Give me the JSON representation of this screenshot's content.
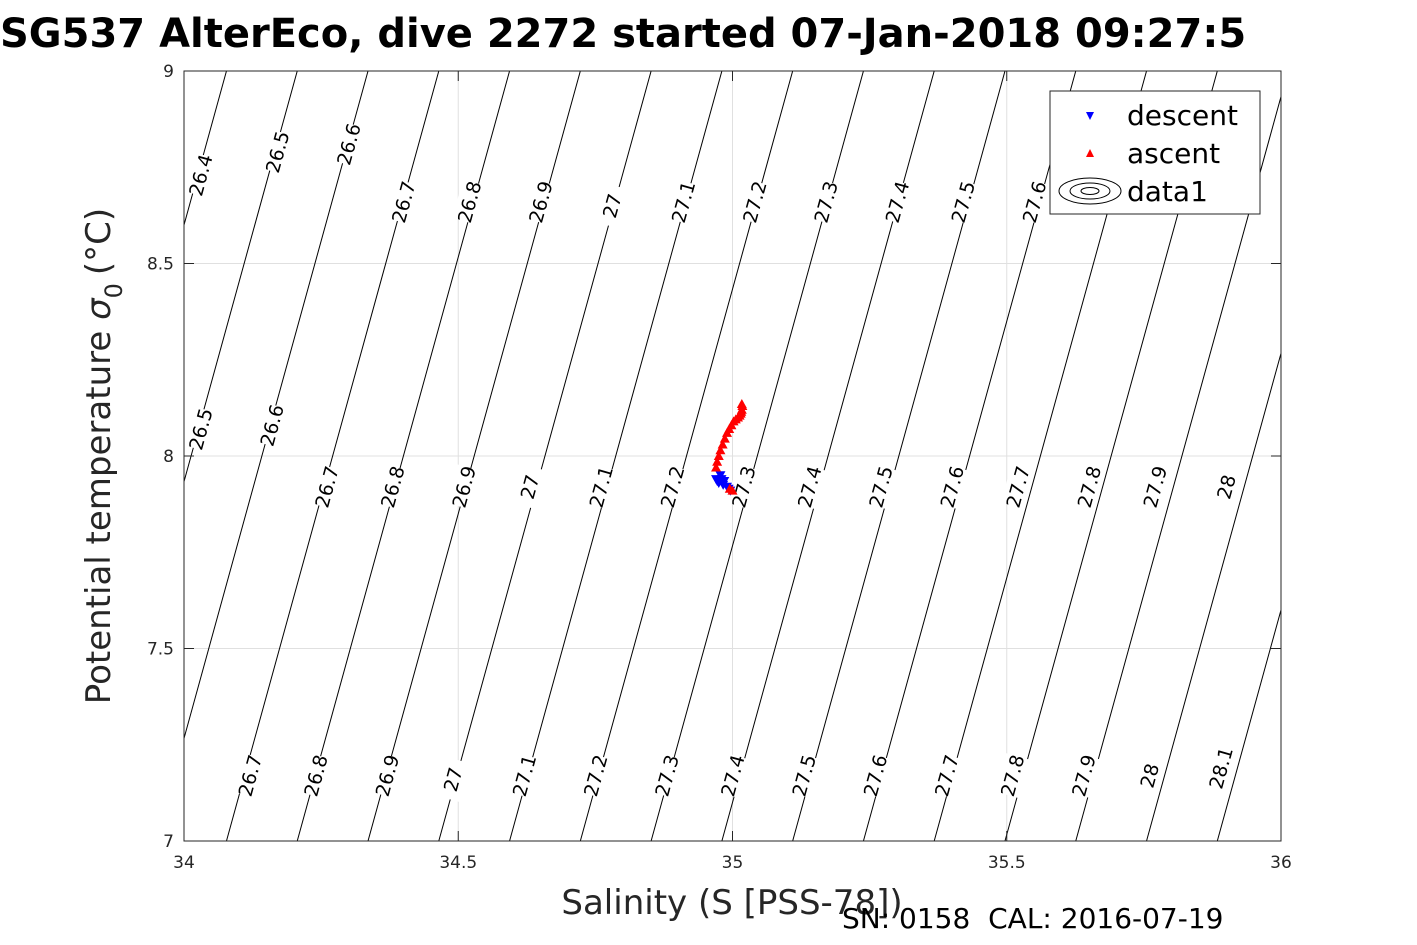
{
  "chart_data": {
    "type": "scatter",
    "title": "SG537 AlterEco, dive 2272 started 07-Jan-2018 09:27:5",
    "xlabel": "Salinity (S [PSS-78])",
    "ylabel": "Potential temperature",
    "ylabel_symbol": "σ",
    "ylabel_subscript": "0",
    "ylabel_unit": "(°C)",
    "xlim": [
      34,
      36
    ],
    "ylim": [
      7,
      9
    ],
    "xticks": [
      34,
      34.5,
      35,
      35.5,
      36
    ],
    "yticks": [
      7,
      7.5,
      8,
      8.5,
      9
    ],
    "xtick_labels": [
      "34",
      "34.5",
      "35",
      "35.5",
      "36"
    ],
    "ytick_labels": [
      "7",
      "7.5",
      "8",
      "8.5",
      "9"
    ],
    "grid": true,
    "legend_position": "top-right",
    "legend": [
      "descent",
      "ascent",
      "data1"
    ],
    "footer": "SN: 0158  CAL: 2016-07-19",
    "colors": {
      "descent": "#0000ff",
      "ascent": "#ff0000",
      "contour": "#000000",
      "grid": "#e0e0e0"
    },
    "contours": {
      "levels": [
        26.4,
        26.5,
        26.6,
        26.7,
        26.8,
        26.9,
        27.0,
        27.1,
        27.2,
        27.3,
        27.4,
        27.5,
        27.6,
        27.7,
        27.8,
        27.9,
        28.0,
        28.1
      ],
      "labels": [
        {
          "text": "26.4",
          "s": 34.03,
          "t": 8.73
        },
        {
          "text": "26.5",
          "s": 34.17,
          "t": 8.79
        },
        {
          "text": "26.6",
          "s": 34.3,
          "t": 8.81
        },
        {
          "text": "26.7",
          "s": 34.4,
          "t": 8.66
        },
        {
          "text": "26.8",
          "s": 34.52,
          "t": 8.66
        },
        {
          "text": "26.9",
          "s": 34.65,
          "t": 8.66
        },
        {
          "text": "27",
          "s": 34.78,
          "t": 8.65
        },
        {
          "text": "27.1",
          "s": 34.91,
          "t": 8.66
        },
        {
          "text": "27.2",
          "s": 35.04,
          "t": 8.66
        },
        {
          "text": "27.3",
          "s": 35.17,
          "t": 8.66
        },
        {
          "text": "27.4",
          "s": 35.3,
          "t": 8.66
        },
        {
          "text": "27.5",
          "s": 35.42,
          "t": 8.66
        },
        {
          "text": "27.6",
          "s": 35.55,
          "t": 8.66
        },
        {
          "text": "26.5",
          "s": 34.03,
          "t": 8.07
        },
        {
          "text": "26.6",
          "s": 34.16,
          "t": 8.08
        },
        {
          "text": "26.7",
          "s": 34.26,
          "t": 7.92
        },
        {
          "text": "26.8",
          "s": 34.38,
          "t": 7.92
        },
        {
          "text": "26.9",
          "s": 34.51,
          "t": 7.92
        },
        {
          "text": "27",
          "s": 34.63,
          "t": 7.92
        },
        {
          "text": "27.1",
          "s": 34.76,
          "t": 7.92
        },
        {
          "text": "27.2",
          "s": 34.89,
          "t": 7.92
        },
        {
          "text": "27.3",
          "s": 35.02,
          "t": 7.92
        },
        {
          "text": "27.4",
          "s": 35.14,
          "t": 7.92
        },
        {
          "text": "27.5",
          "s": 35.27,
          "t": 7.92
        },
        {
          "text": "27.6",
          "s": 35.4,
          "t": 7.92
        },
        {
          "text": "27.7",
          "s": 35.52,
          "t": 7.92
        },
        {
          "text": "27.8",
          "s": 35.65,
          "t": 7.92
        },
        {
          "text": "27.9",
          "s": 35.77,
          "t": 7.92
        },
        {
          "text": "28",
          "s": 35.9,
          "t": 7.92
        },
        {
          "text": "26.7",
          "s": 34.12,
          "t": 7.17
        },
        {
          "text": "26.8",
          "s": 34.24,
          "t": 7.17
        },
        {
          "text": "26.9",
          "s": 34.37,
          "t": 7.17
        },
        {
          "text": "27",
          "s": 34.49,
          "t": 7.16
        },
        {
          "text": "27.1",
          "s": 34.62,
          "t": 7.17
        },
        {
          "text": "27.2",
          "s": 34.75,
          "t": 7.17
        },
        {
          "text": "27.3",
          "s": 34.88,
          "t": 7.17
        },
        {
          "text": "27.4",
          "s": 35.0,
          "t": 7.17
        },
        {
          "text": "27.5",
          "s": 35.13,
          "t": 7.17
        },
        {
          "text": "27.6",
          "s": 35.26,
          "t": 7.17
        },
        {
          "text": "27.7",
          "s": 35.39,
          "t": 7.17
        },
        {
          "text": "27.8",
          "s": 35.51,
          "t": 7.17
        },
        {
          "text": "27.9",
          "s": 35.64,
          "t": 7.17
        },
        {
          "text": "28",
          "s": 35.76,
          "t": 7.17
        },
        {
          "text": "28.1",
          "s": 35.89,
          "t": 7.19
        }
      ]
    },
    "series": [
      {
        "name": "descent",
        "marker": "triangle-down",
        "s": [
          34.97,
          34.972,
          34.975,
          34.978,
          34.98,
          34.983,
          34.985,
          34.99,
          34.993,
          34.996
        ],
        "t": [
          7.94,
          7.935,
          7.93,
          7.95,
          7.94,
          7.925,
          7.935,
          7.92,
          7.915,
          7.91
        ]
      },
      {
        "name": "ascent",
        "marker": "triangle-up",
        "s": [
          34.97,
          34.972,
          34.975,
          34.978,
          34.982,
          34.986,
          34.99,
          34.994,
          34.998,
          35.002,
          35.006,
          35.01,
          35.013,
          35.015,
          35.016,
          35.017,
          35.018,
          35.017,
          35.0,
          34.995
        ],
        "t": [
          7.97,
          7.985,
          8.0,
          8.015,
          8.03,
          8.045,
          8.06,
          8.07,
          8.08,
          8.09,
          8.095,
          8.1,
          8.105,
          8.11,
          8.115,
          8.12,
          8.13,
          8.135,
          7.91,
          7.915
        ]
      }
    ]
  }
}
